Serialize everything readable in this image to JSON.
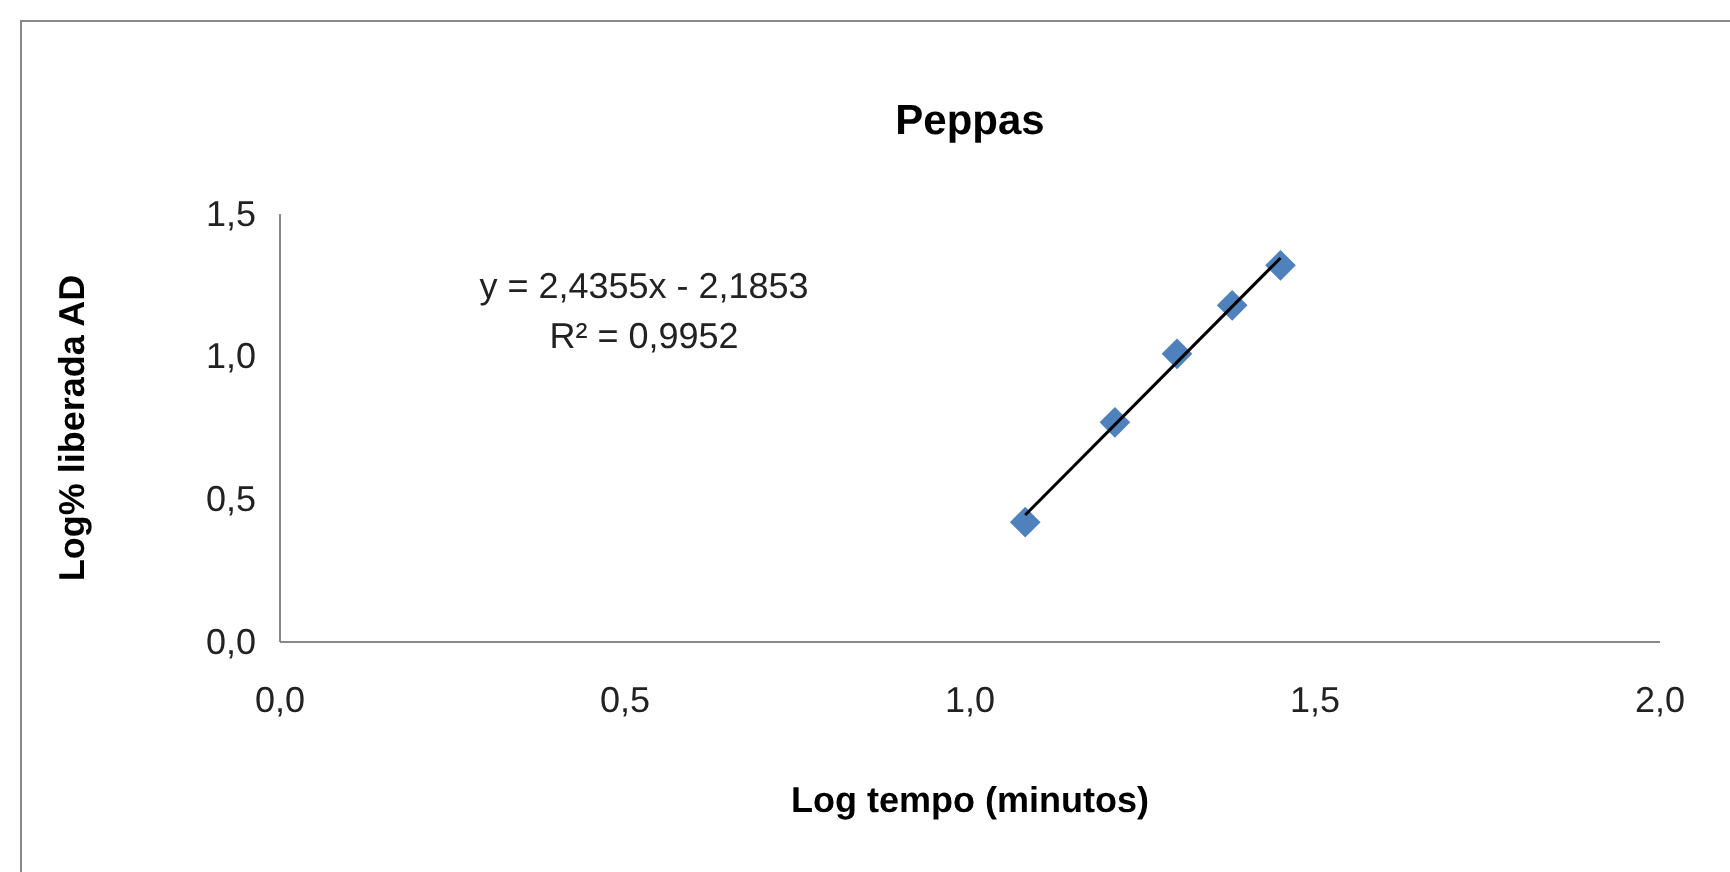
{
  "chart_data": {
    "type": "scatter",
    "title": "Peppas",
    "xlabel": "Log tempo (minutos)",
    "ylabel": "Log% liberada AD",
    "xlim": [
      0,
      2
    ],
    "ylim": [
      0,
      1.5
    ],
    "xticks": [
      {
        "value": 0,
        "label": "0,0"
      },
      {
        "value": 0.5,
        "label": "0,5"
      },
      {
        "value": 1,
        "label": "1,0"
      },
      {
        "value": 1.5,
        "label": "1,5"
      },
      {
        "value": 2,
        "label": "2,0"
      }
    ],
    "yticks": [
      {
        "value": 0,
        "label": "0,0"
      },
      {
        "value": 0.5,
        "label": "0,5"
      },
      {
        "value": 1,
        "label": "1,0"
      },
      {
        "value": 1.5,
        "label": "1,5"
      }
    ],
    "grid": false,
    "series": [
      {
        "color": "#4f81bd",
        "marker": "diamond",
        "x": [
          1.08,
          1.21,
          1.3,
          1.38,
          1.45
        ],
        "values": [
          0.42,
          0.77,
          1.01,
          1.18,
          1.32
        ]
      },
      {
        "type": "line",
        "color": "#000000",
        "marker": "none",
        "line_style": "solid",
        "x": [
          1.08,
          1.45
        ],
        "values": [
          0.445,
          1.346
        ]
      }
    ],
    "annotations": [
      "y = 2,4355x - 2,1853",
      "R² = 0,9952"
    ]
  }
}
